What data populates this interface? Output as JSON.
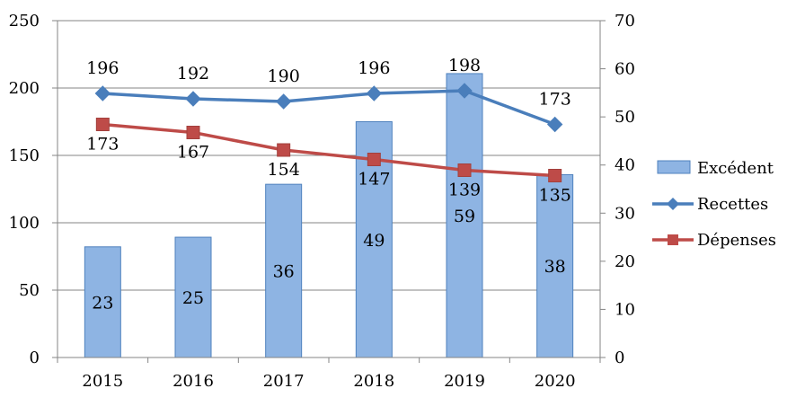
{
  "chart_data": {
    "type": "bar+line",
    "categories": [
      "2015",
      "2016",
      "2017",
      "2018",
      "2019",
      "2020"
    ],
    "bar_series": {
      "name": "Excédent",
      "axis": "right",
      "values": [
        23,
        25,
        36,
        49,
        59,
        38
      ],
      "labels": [
        "23",
        "25",
        "36",
        "49",
        "59",
        "38"
      ],
      "color": "#8eb4e3",
      "border": "#4f81bd"
    },
    "line_series": [
      {
        "name": "Recettes",
        "axis": "left",
        "values": [
          196,
          192,
          190,
          196,
          198,
          173
        ],
        "labels": [
          "196",
          "192",
          "190",
          "196",
          "198",
          "173"
        ],
        "color": "#4a7ebb",
        "marker": "diamond"
      },
      {
        "name": "Dépenses",
        "axis": "left",
        "values": [
          173,
          167,
          154,
          147,
          139,
          135
        ],
        "labels": [
          "173",
          "167",
          "154",
          "147",
          "139",
          "135"
        ],
        "color": "#be4b48",
        "marker": "square"
      }
    ],
    "left_axis": {
      "min": 0,
      "max": 250,
      "step": 50,
      "ticks": [
        "0",
        "50",
        "100",
        "150",
        "200",
        "250"
      ]
    },
    "right_axis": {
      "min": 0,
      "max": 70,
      "step": 10,
      "ticks": [
        "0",
        "10",
        "20",
        "30",
        "40",
        "50",
        "60",
        "70"
      ]
    },
    "grid": true,
    "legend_position": "right",
    "legend": [
      "Excédent",
      "Recettes",
      "Dépenses"
    ],
    "title": "",
    "xlabel": "",
    "ylabel": ""
  }
}
